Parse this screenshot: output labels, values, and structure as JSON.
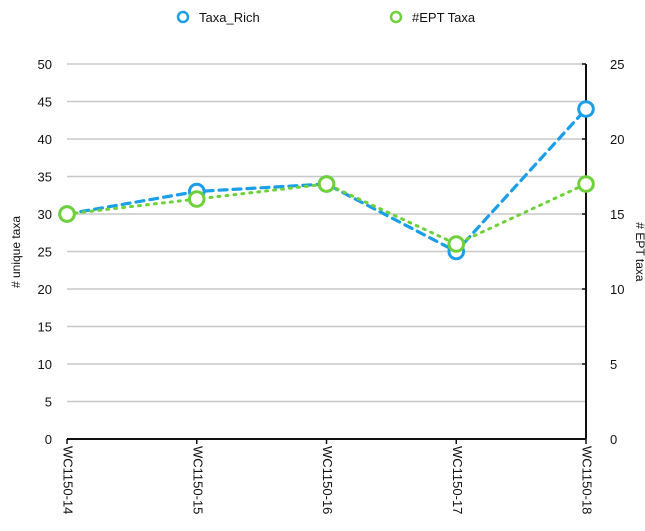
{
  "chart_data": {
    "type": "line",
    "categories": [
      "WC1150-14",
      "WC1150-15",
      "WC1150-16",
      "WC1150-17",
      "WC1150-18"
    ],
    "series": [
      {
        "name": "Taxa_Rich",
        "values": [
          30,
          33,
          34,
          25,
          44
        ],
        "color": "#1a9ee8",
        "axis": "left",
        "line_style": "dashed",
        "marker": "hollow-circle"
      },
      {
        "name": "#EPT Taxa",
        "values": [
          15,
          16,
          17,
          13,
          17
        ],
        "color": "#6fd13a",
        "axis": "right",
        "line_style": "dotted",
        "marker": "hollow-circle"
      }
    ],
    "ylabel": "# unique taxa",
    "y2label": "# EPT taxa",
    "ylim": [
      0,
      50
    ],
    "y2lim": [
      0,
      25
    ],
    "yticks": [
      "0",
      "5",
      "10",
      "15",
      "20",
      "25",
      "30",
      "35",
      "40",
      "45",
      "50"
    ],
    "y2ticks": [
      "0",
      "5",
      "10",
      "15",
      "20",
      "25"
    ],
    "grid": true,
    "legend_position": "top-center",
    "colors": {
      "grid": "#c8c8c8",
      "axis": "#111111",
      "text": "#111111"
    }
  }
}
